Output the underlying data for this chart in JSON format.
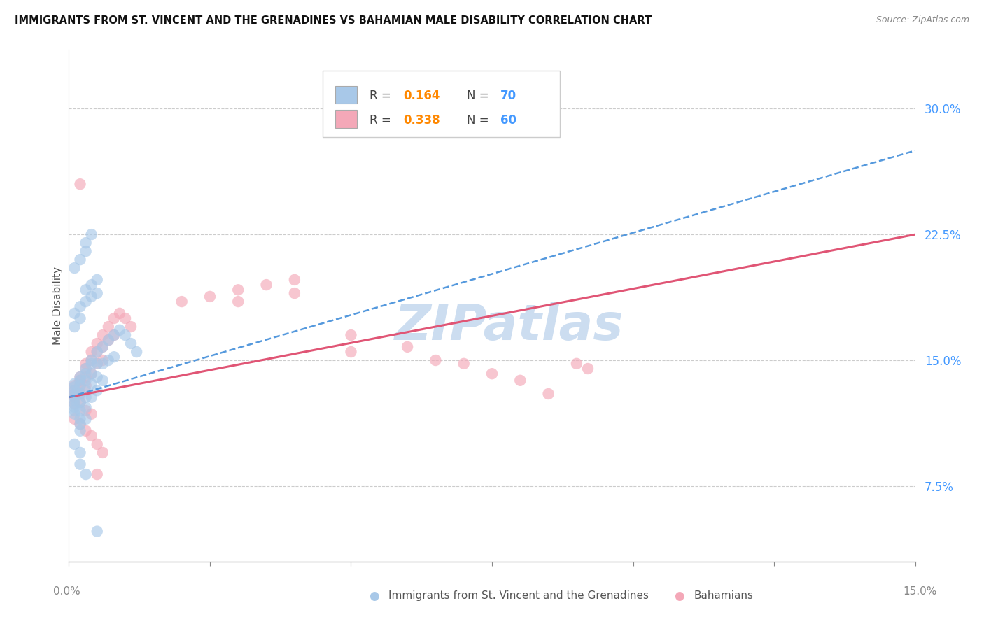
{
  "title": "IMMIGRANTS FROM ST. VINCENT AND THE GRENADINES VS BAHAMIAN MALE DISABILITY CORRELATION CHART",
  "source": "Source: ZipAtlas.com",
  "ylabel": "Male Disability",
  "ytick_labels": [
    "30.0%",
    "22.5%",
    "15.0%",
    "7.5%"
  ],
  "ytick_values": [
    0.3,
    0.225,
    0.15,
    0.075
  ],
  "xlim": [
    0.0,
    0.15
  ],
  "ylim": [
    0.03,
    0.335
  ],
  "legend1_r": "0.164",
  "legend1_n": "70",
  "legend2_r": "0.338",
  "legend2_n": "60",
  "color_blue": "#a8c8e8",
  "color_pink": "#f4a8b8",
  "color_blue_line": "#5599dd",
  "color_pink_line": "#e05575",
  "color_text_blue": "#4499ff",
  "color_text_orange": "#ff8800",
  "watermark_color": "#ccddf0",
  "blue_line_y0": 0.128,
  "blue_line_y1": 0.275,
  "pink_line_y0": 0.128,
  "pink_line_y1": 0.225,
  "blue_points_x": [
    0.001,
    0.001,
    0.001,
    0.001,
    0.001,
    0.001,
    0.001,
    0.001,
    0.001,
    0.001,
    0.002,
    0.002,
    0.002,
    0.002,
    0.002,
    0.002,
    0.002,
    0.002,
    0.002,
    0.003,
    0.003,
    0.003,
    0.003,
    0.003,
    0.003,
    0.003,
    0.004,
    0.004,
    0.004,
    0.004,
    0.004,
    0.005,
    0.005,
    0.005,
    0.005,
    0.006,
    0.006,
    0.006,
    0.007,
    0.007,
    0.008,
    0.008,
    0.009,
    0.01,
    0.011,
    0.012,
    0.001,
    0.001,
    0.002,
    0.002,
    0.003,
    0.003,
    0.004,
    0.004,
    0.005,
    0.005,
    0.001,
    0.002,
    0.003,
    0.003,
    0.004,
    0.001,
    0.002,
    0.002,
    0.003,
    0.005
  ],
  "blue_points_y": [
    0.13,
    0.132,
    0.134,
    0.136,
    0.128,
    0.126,
    0.124,
    0.122,
    0.12,
    0.118,
    0.138,
    0.14,
    0.135,
    0.13,
    0.125,
    0.12,
    0.115,
    0.112,
    0.108,
    0.145,
    0.142,
    0.138,
    0.132,
    0.128,
    0.122,
    0.115,
    0.15,
    0.148,
    0.142,
    0.136,
    0.128,
    0.155,
    0.148,
    0.14,
    0.132,
    0.158,
    0.148,
    0.138,
    0.162,
    0.15,
    0.165,
    0.152,
    0.168,
    0.165,
    0.16,
    0.155,
    0.17,
    0.178,
    0.175,
    0.182,
    0.185,
    0.192,
    0.188,
    0.195,
    0.19,
    0.198,
    0.205,
    0.21,
    0.215,
    0.22,
    0.225,
    0.1,
    0.095,
    0.088,
    0.082,
    0.048
  ],
  "pink_points_x": [
    0.001,
    0.001,
    0.001,
    0.001,
    0.001,
    0.002,
    0.002,
    0.002,
    0.002,
    0.002,
    0.003,
    0.003,
    0.003,
    0.003,
    0.004,
    0.004,
    0.004,
    0.005,
    0.005,
    0.005,
    0.006,
    0.006,
    0.006,
    0.007,
    0.007,
    0.008,
    0.008,
    0.009,
    0.01,
    0.011,
    0.02,
    0.025,
    0.03,
    0.03,
    0.035,
    0.04,
    0.04,
    0.05,
    0.05,
    0.06,
    0.065,
    0.07,
    0.075,
    0.08,
    0.085,
    0.09,
    0.092,
    0.001,
    0.002,
    0.003,
    0.004,
    0.005,
    0.006,
    0.003,
    0.004,
    0.002,
    0.005
  ],
  "pink_points_y": [
    0.13,
    0.132,
    0.135,
    0.128,
    0.124,
    0.14,
    0.138,
    0.135,
    0.13,
    0.125,
    0.148,
    0.145,
    0.14,
    0.135,
    0.155,
    0.15,
    0.142,
    0.16,
    0.155,
    0.148,
    0.165,
    0.158,
    0.15,
    0.17,
    0.162,
    0.175,
    0.165,
    0.178,
    0.175,
    0.17,
    0.185,
    0.188,
    0.192,
    0.185,
    0.195,
    0.198,
    0.19,
    0.165,
    0.155,
    0.158,
    0.15,
    0.148,
    0.142,
    0.138,
    0.13,
    0.148,
    0.145,
    0.115,
    0.112,
    0.108,
    0.105,
    0.1,
    0.095,
    0.12,
    0.118,
    0.255,
    0.082
  ]
}
